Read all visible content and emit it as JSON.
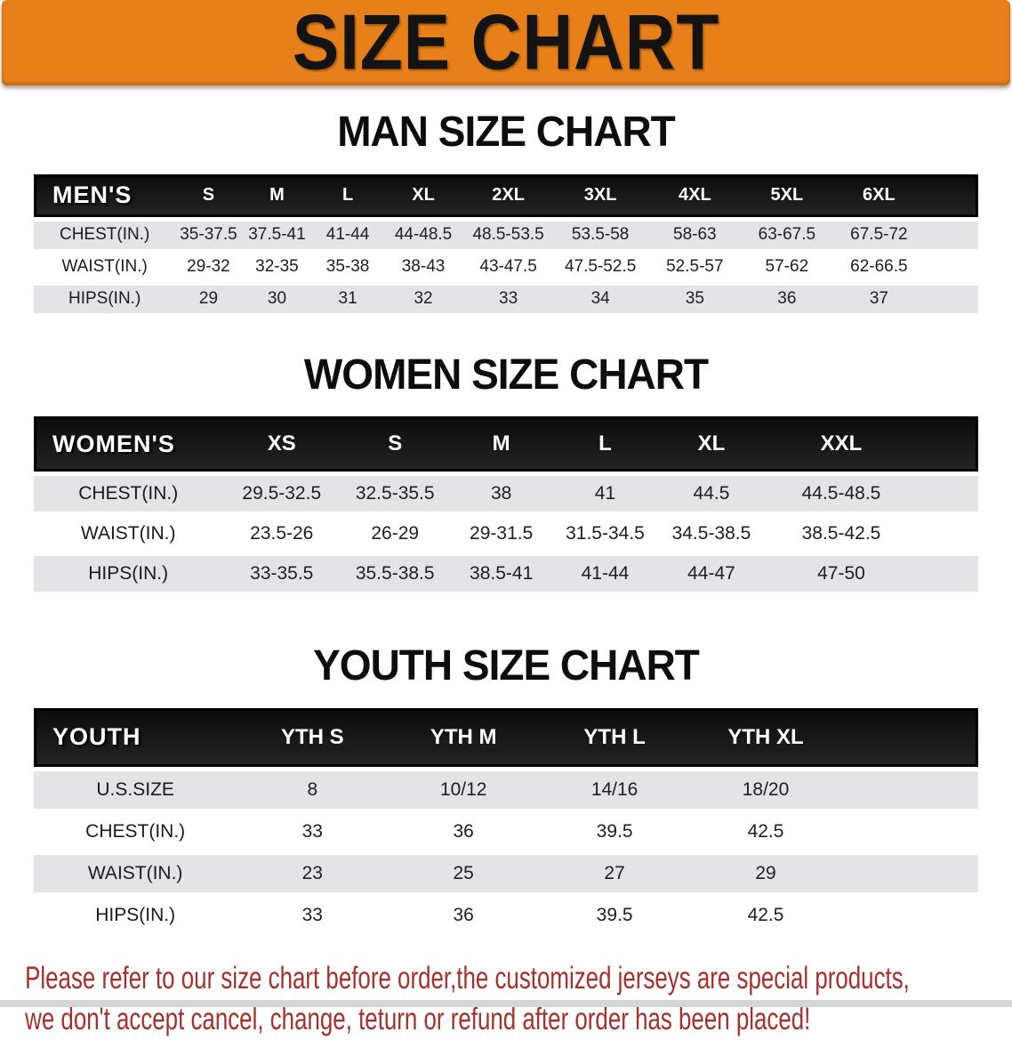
{
  "banner": {
    "title": "SIZE CHART"
  },
  "colors": {
    "banner_orange": "#e8801a",
    "header_bar_black": "#141414",
    "row_gray": "#e4e4e6",
    "row_white": "#ffffff",
    "disclaimer_red": "#a5302c",
    "title_black": "#0d0d0d"
  },
  "sections": [
    {
      "title": "MAN SIZE CHART",
      "table": {
        "header": [
          "MEN'S",
          "S",
          "M",
          "L",
          "XL",
          "2XL",
          "3XL",
          "4XL",
          "5XL",
          "6XL"
        ],
        "rows": [
          {
            "label": "CHEST(IN.)",
            "values": [
              "35-37.5",
              "37.5-41",
              "41-44",
              "44-48.5",
              "48.5-53.5",
              "53.5-58",
              "58-63",
              "63-67.5",
              "67.5-72"
            ]
          },
          {
            "label": "WAIST(IN.)",
            "values": [
              "29-32",
              "32-35",
              "35-38",
              "38-43",
              "43-47.5",
              "47.5-52.5",
              "52.5-57",
              "57-62",
              "62-66.5"
            ]
          },
          {
            "label": "HIPS(IN.)",
            "values": [
              "29",
              "30",
              "31",
              "32",
              "33",
              "34",
              "35",
              "36",
              "37"
            ]
          }
        ]
      }
    },
    {
      "title": "WOMEN SIZE CHART",
      "table": {
        "header": [
          "WOMEN'S",
          "XS",
          "S",
          "M",
          "L",
          "XL",
          "XXL"
        ],
        "rows": [
          {
            "label": "CHEST(IN.)",
            "values": [
              "29.5-32.5",
              "32.5-35.5",
              "38",
              "41",
              "44.5",
              "44.5-48.5"
            ]
          },
          {
            "label": "WAIST(IN.)",
            "values": [
              "23.5-26",
              "26-29",
              "29-31.5",
              "31.5-34.5",
              "34.5-38.5",
              "38.5-42.5"
            ]
          },
          {
            "label": "HIPS(IN.)",
            "values": [
              "33-35.5",
              "35.5-38.5",
              "38.5-41",
              "41-44",
              "44-47",
              "47-50"
            ]
          }
        ]
      }
    },
    {
      "title": "YOUTH SIZE CHART",
      "table": {
        "header": [
          "YOUTH",
          "YTH S",
          "YTH M",
          "YTH L",
          "YTH XL"
        ],
        "rows": [
          {
            "label": "U.S.SIZE",
            "values": [
              "8",
              "10/12",
              "14/16",
              "18/20"
            ]
          },
          {
            "label": "CHEST(IN.)",
            "values": [
              "33",
              "36",
              "39.5",
              "42.5"
            ]
          },
          {
            "label": "WAIST(IN.)",
            "values": [
              "23",
              "25",
              "27",
              "29"
            ]
          },
          {
            "label": "HIPS(IN.)",
            "values": [
              "33",
              "36",
              "39.5",
              "42.5"
            ]
          }
        ]
      }
    }
  ],
  "disclaimer": {
    "line1": "Please refer to our size chart before order,the customized jerseys are special products,",
    "line2": "we don't accept cancel, change, teturn or refund after order has been placed!"
  }
}
